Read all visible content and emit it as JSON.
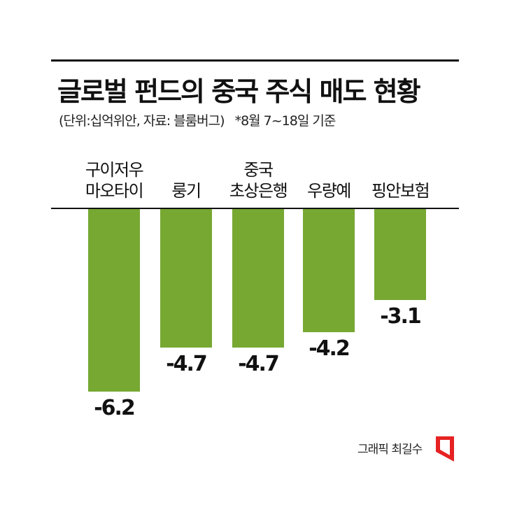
{
  "header": {
    "title": "글로벌 펀드의 중국 주식 매도 현황",
    "unit_source": "(단위:십억위안, 자료: 블룸버그)",
    "date_note": "*8월 7~18일 기준"
  },
  "footer": {
    "credit": "그래픽 최길수",
    "logo_color": "#e62222"
  },
  "colors": {
    "bar": "#76a832",
    "text": "#111111"
  },
  "chart_data": {
    "type": "bar",
    "categories": [
      "구이저우 마오타이",
      "룽기",
      "중국 초상은행",
      "우량예",
      "핑안보험"
    ],
    "category_lines": [
      [
        "구이저우",
        "마오타이"
      ],
      [
        "룽기"
      ],
      [
        "중국",
        "초상은행"
      ],
      [
        "우량예"
      ],
      [
        "핑안보험"
      ]
    ],
    "values": [
      -6.2,
      -4.7,
      -4.7,
      -4.2,
      -3.1
    ],
    "value_labels": [
      "-6.2",
      "-4.7",
      "-4.7",
      "-4.2",
      "-3.1"
    ],
    "ylim": [
      -6.2,
      0
    ],
    "grid": false,
    "legend": "none"
  }
}
